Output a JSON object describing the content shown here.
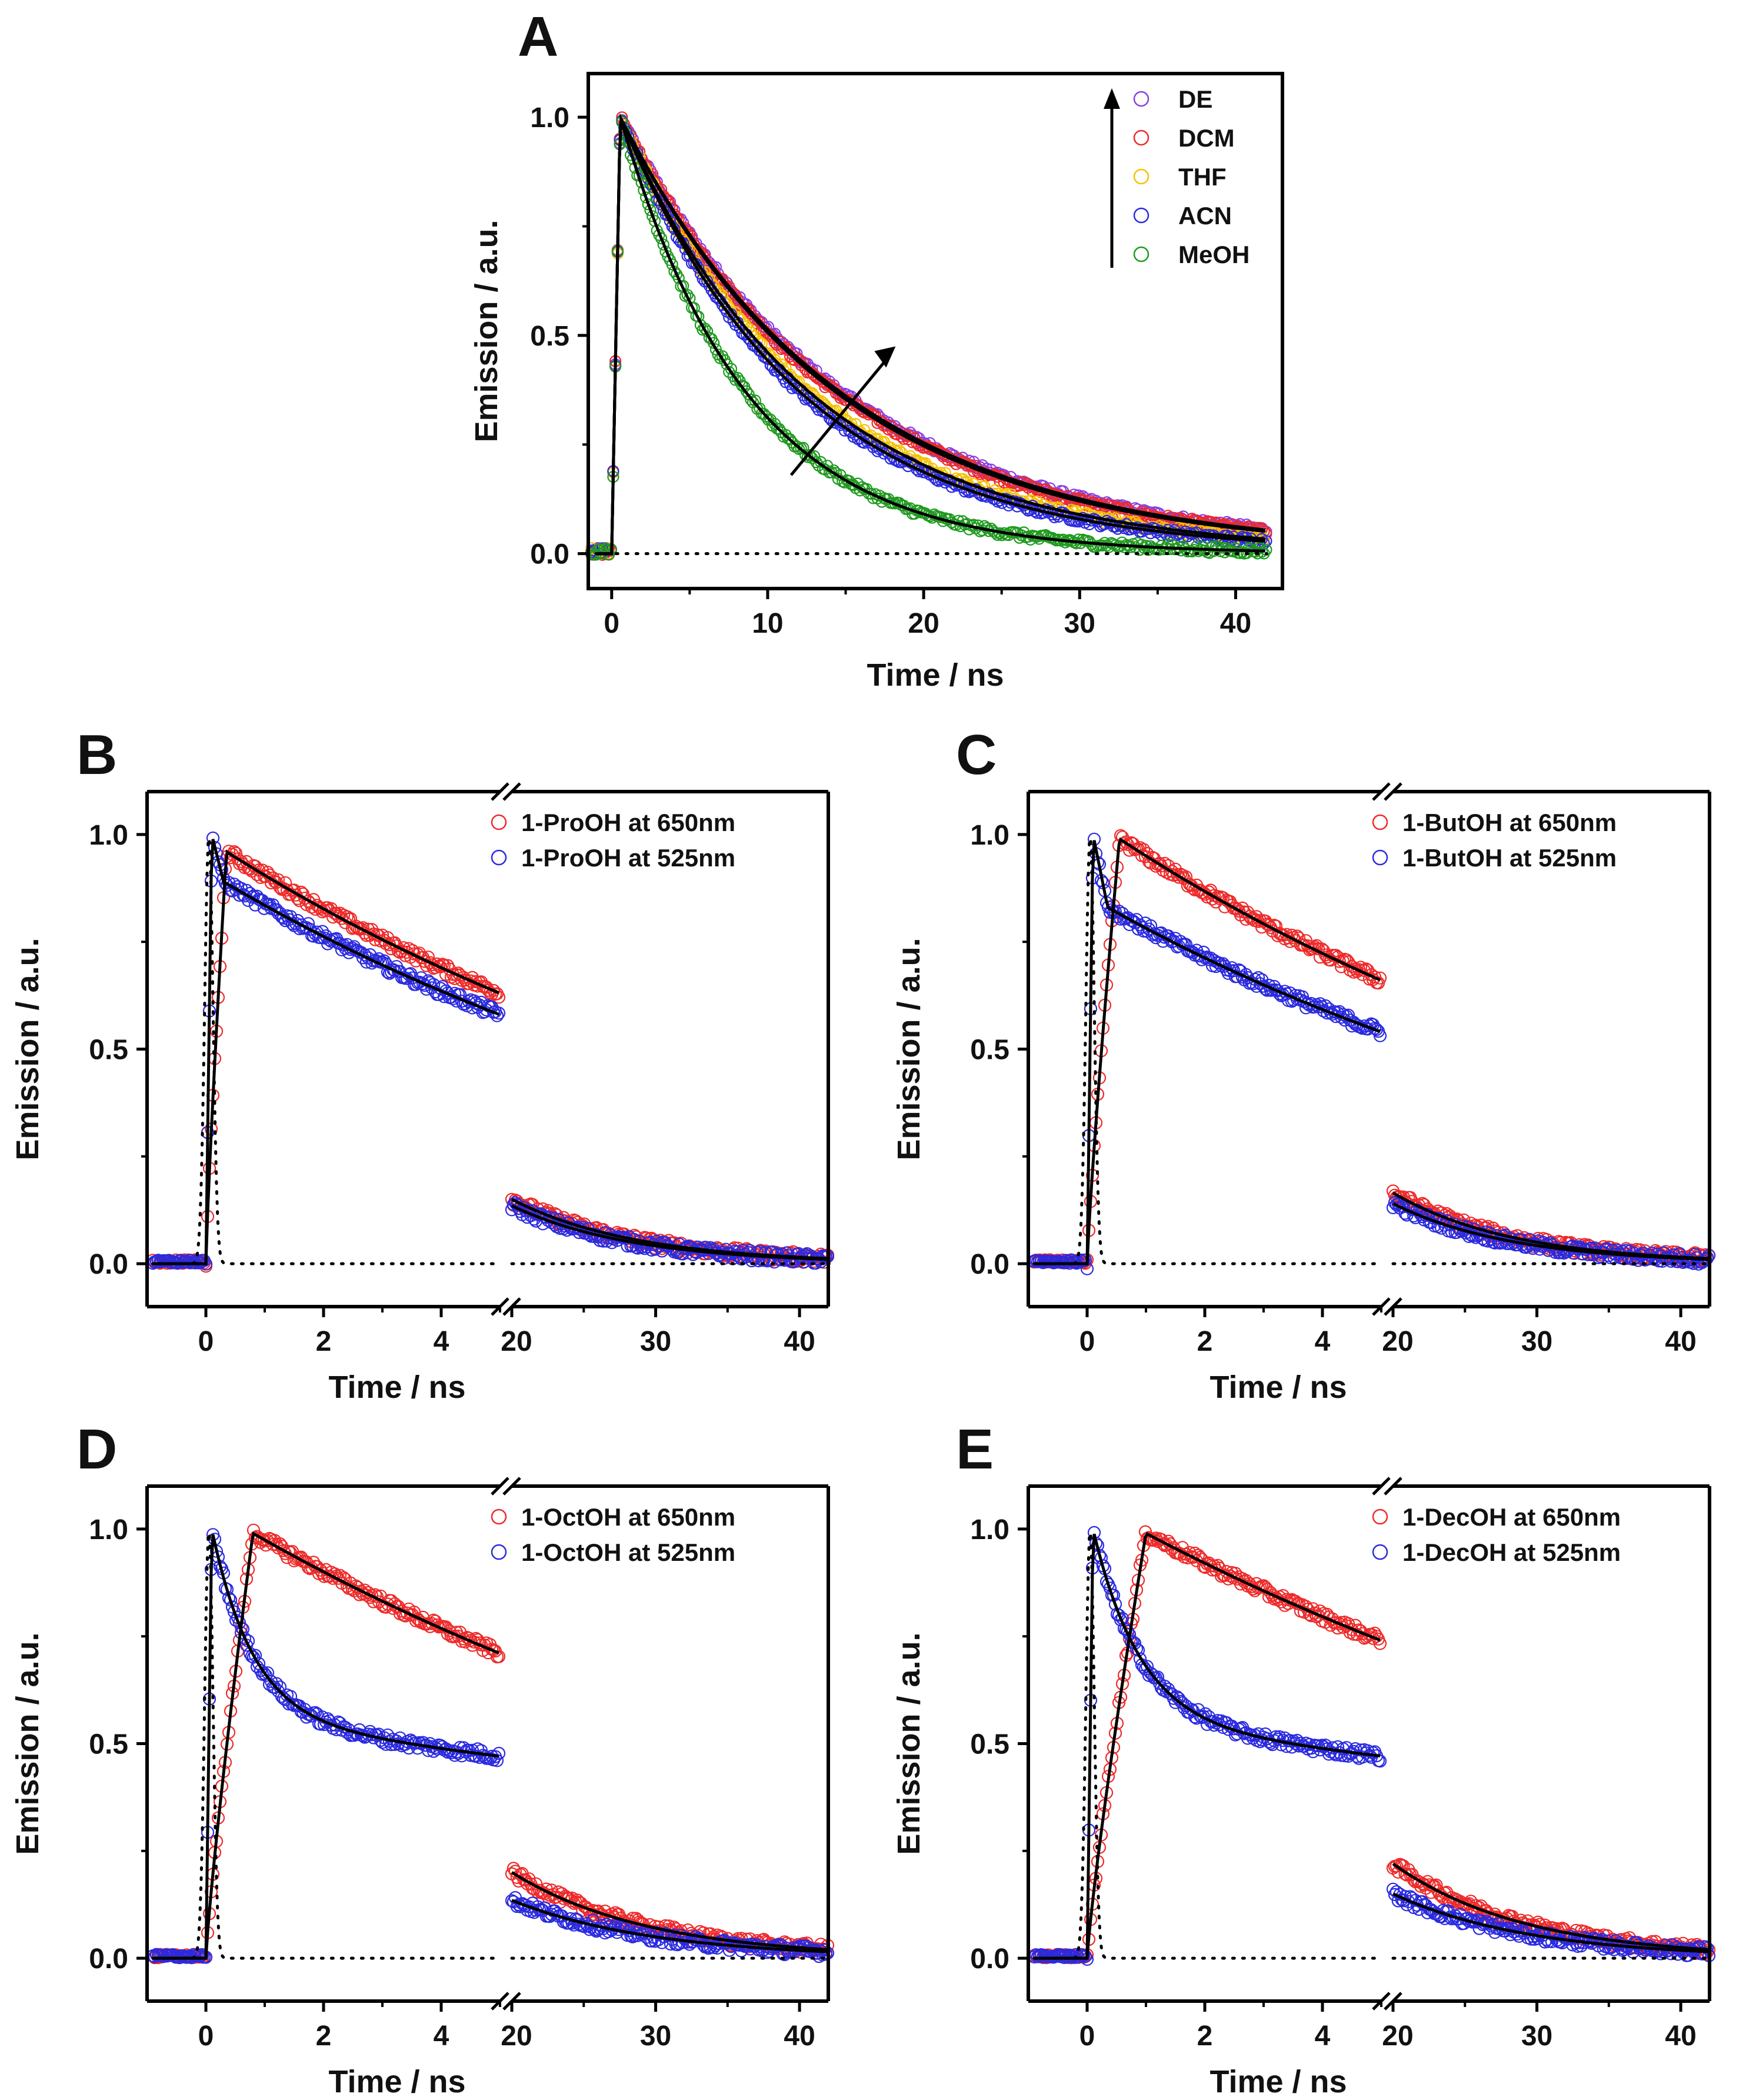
{
  "figure": "time-resolved emission decays",
  "chart_data": [
    {
      "type": "scatter",
      "panel": "A",
      "xlabel": "Time / ns",
      "ylabel": "Emission / a.u.",
      "xlim": [
        -1.5,
        43
      ],
      "ylim": [
        -0.08,
        1.1
      ],
      "x_ticks": [
        0,
        10,
        20,
        30,
        40
      ],
      "y_ticks": [
        0.0,
        0.5,
        1.0
      ],
      "x_tick_labels": [
        "0",
        "10",
        "20",
        "30",
        "40"
      ],
      "y_tick_labels": [
        "0.0",
        "0.5",
        "1.0"
      ],
      "legend": "top-right",
      "annotation": "arrows indicate increasing lifetime from MeOH to DE",
      "series": [
        {
          "name": "DE",
          "color": "#8a3fe0",
          "kind": "single",
          "tau": 14.2,
          "t_peak": 0.55
        },
        {
          "name": "DCM",
          "color": "#ee2a2a",
          "kind": "single",
          "tau": 13.9,
          "t_peak": 0.55
        },
        {
          "name": "THF",
          "color": "#f5c200",
          "kind": "single",
          "tau": 12.2,
          "t_peak": 0.55
        },
        {
          "name": "ACN",
          "color": "#2a2ae0",
          "kind": "single",
          "tau": 11.6,
          "t_peak": 0.55
        },
        {
          "name": "MeOH",
          "color": "#1f9a1f",
          "kind": "single",
          "tau": 8.1,
          "t_peak": 0.55
        }
      ],
      "irf": {
        "kind": "dotted",
        "value": 0.0
      }
    },
    {
      "type": "scatter",
      "panel": "B",
      "xlabel": "Time / ns",
      "ylabel": "Emission / a.u.",
      "broken_x": {
        "left": [
          -1,
          5
        ],
        "right": [
          20,
          42
        ]
      },
      "ylim": [
        -0.1,
        1.1
      ],
      "x_tick_labels": [
        "0",
        "2",
        "4",
        "20",
        "30",
        "40"
      ],
      "y_tick_labels": [
        "0.0",
        "0.5",
        "1.0"
      ],
      "legend": "top-right",
      "series": [
        {
          "name": "1-ProOH at 650nm",
          "color": "#ee2a2a",
          "kind": "rise",
          "peak_time": 0.35,
          "peak": 0.96,
          "v5": 0.63,
          "v20": 0.15,
          "v42": 0.012
        },
        {
          "name": "1-ProOH at 525nm",
          "color": "#2a2ae0",
          "kind": "spike",
          "spike_time": 0.1,
          "spike": 1.0,
          "shoulder_time": 0.3,
          "shoulder": 0.89,
          "v5": 0.58,
          "v20": 0.135,
          "v42": 0.01
        }
      ],
      "irf": {
        "kind": "dotted",
        "peak_time": 0.05
      }
    },
    {
      "type": "scatter",
      "panel": "C",
      "xlabel": "Time / ns",
      "ylabel": "Emission / a.u.",
      "broken_x": {
        "left": [
          -1,
          5
        ],
        "right": [
          20,
          42
        ]
      },
      "ylim": [
        -0.1,
        1.1
      ],
      "x_tick_labels": [
        "0",
        "2",
        "4",
        "20",
        "30",
        "40"
      ],
      "y_tick_labels": [
        "0.0",
        "0.5",
        "1.0"
      ],
      "legend": "top-right",
      "series": [
        {
          "name": "1-ButOH at 650nm",
          "color": "#ee2a2a",
          "kind": "rise",
          "peak_time": 0.55,
          "peak": 0.99,
          "v5": 0.66,
          "v20": 0.165,
          "v42": 0.012
        },
        {
          "name": "1-ButOH at 525nm",
          "color": "#2a2ae0",
          "kind": "spike",
          "spike_time": 0.1,
          "spike": 1.0,
          "shoulder_time": 0.35,
          "shoulder": 0.83,
          "v5": 0.54,
          "v20": 0.14,
          "v42": 0.01
        }
      ],
      "irf": {
        "kind": "dotted",
        "peak_time": 0.05
      }
    },
    {
      "type": "scatter",
      "panel": "D",
      "xlabel": "Time / ns",
      "ylabel": "Emission / a.u.",
      "broken_x": {
        "left": [
          -1,
          5
        ],
        "right": [
          20,
          42
        ]
      },
      "ylim": [
        -0.1,
        1.1
      ],
      "x_tick_labels": [
        "0",
        "2",
        "4",
        "20",
        "30",
        "40"
      ],
      "y_tick_labels": [
        "0.0",
        "0.5",
        "1.0"
      ],
      "legend": "top-right",
      "series": [
        {
          "name": "1-OctOH at 650nm",
          "color": "#ee2a2a",
          "kind": "rise",
          "peak_time": 0.8,
          "peak": 0.99,
          "v5": 0.71,
          "v20": 0.2,
          "v42": 0.02
        },
        {
          "name": "1-OctOH at 525nm",
          "color": "#2a2ae0",
          "kind": "fast",
          "spike_time": 0.1,
          "spike": 1.0,
          "amp_fast": 0.44,
          "tau_fast": 0.7,
          "v5": 0.47,
          "v20": 0.135,
          "v42": 0.015
        }
      ],
      "irf": {
        "kind": "dotted",
        "peak_time": 0.05
      }
    },
    {
      "type": "scatter",
      "panel": "E",
      "xlabel": "Time / ns",
      "ylabel": "Emission / a.u.",
      "broken_x": {
        "left": [
          -1,
          5
        ],
        "right": [
          20,
          42
        ]
      },
      "ylim": [
        -0.1,
        1.1
      ],
      "x_tick_labels": [
        "0",
        "2",
        "4",
        "20",
        "30",
        "40"
      ],
      "y_tick_labels": [
        "0.0",
        "0.5",
        "1.0"
      ],
      "legend": "top-right",
      "series": [
        {
          "name": "1-DecOH at 650nm",
          "color": "#ee2a2a",
          "kind": "rise",
          "peak_time": 1.0,
          "peak": 0.99,
          "v5": 0.74,
          "v20": 0.22,
          "v42": 0.02
        },
        {
          "name": "1-DecOH at 525nm",
          "color": "#2a2ae0",
          "kind": "fast",
          "spike_time": 0.1,
          "spike": 1.0,
          "amp_fast": 0.45,
          "tau_fast": 0.8,
          "v5": 0.47,
          "v20": 0.15,
          "v42": 0.015
        }
      ],
      "irf": {
        "kind": "dotted",
        "peak_time": 0.05
      }
    }
  ]
}
